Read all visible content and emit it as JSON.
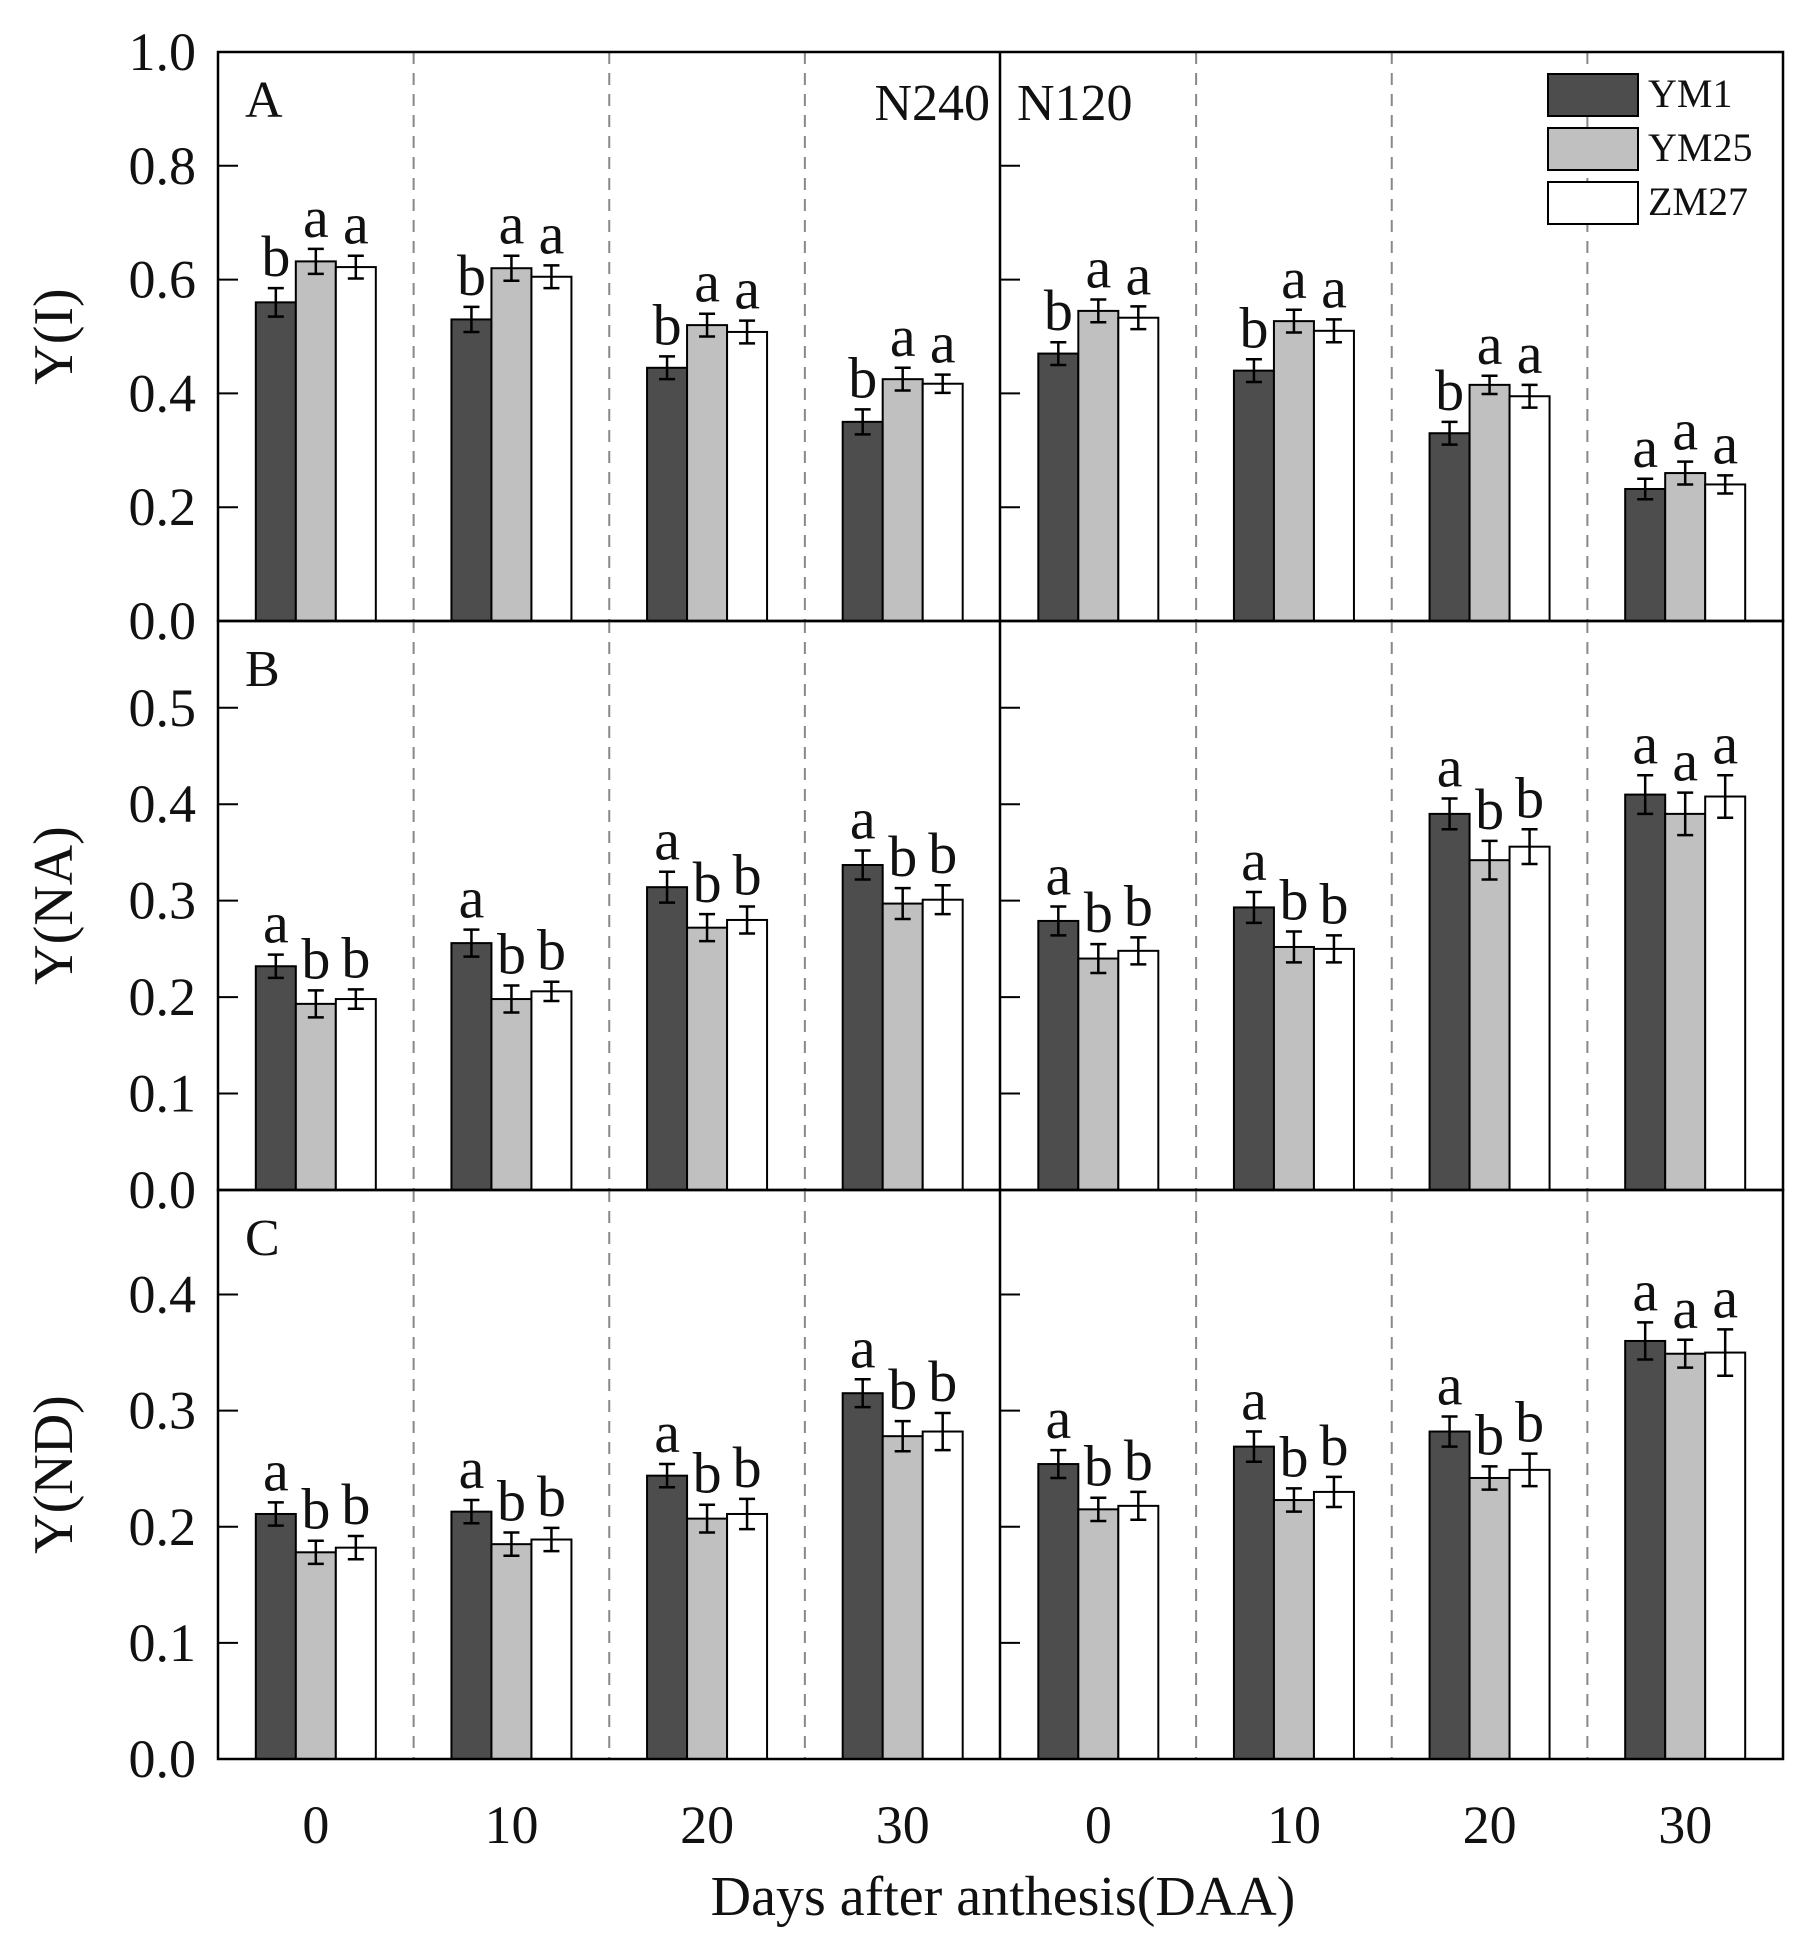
{
  "colors": {
    "YM1": "#4d4d4d",
    "YM25": "#c0c0c0",
    "ZM27": "#ffffff"
  },
  "legend": [
    "YM1",
    "YM25",
    "ZM27"
  ],
  "conditions": [
    "N240",
    "N120"
  ],
  "x_groups": [
    "0",
    "10",
    "20",
    "30"
  ],
  "xlabel": "Days after anthesis(DAA)",
  "chart_data": [
    {
      "type": "bar",
      "panel": "A",
      "ylabel": "Y(I)",
      "ylim": [
        0,
        1.0
      ],
      "yticks": [
        "0.0",
        "0.2",
        "0.4",
        "0.6",
        "0.8",
        "1.0"
      ],
      "x": [
        "0",
        "10",
        "20",
        "30",
        "0",
        "10",
        "20",
        "30"
      ],
      "condition": [
        "N240",
        "N240",
        "N240",
        "N240",
        "N120",
        "N120",
        "N120",
        "N120"
      ],
      "series": [
        {
          "name": "YM1",
          "values": [
            0.56,
            0.53,
            0.445,
            0.35,
            0.47,
            0.44,
            0.33,
            0.232
          ],
          "errors": [
            0.025,
            0.022,
            0.02,
            0.022,
            0.02,
            0.02,
            0.02,
            0.018
          ],
          "letters": [
            "b",
            "b",
            "b",
            "b",
            "b",
            "b",
            "b",
            "a"
          ]
        },
        {
          "name": "YM25",
          "values": [
            0.632,
            0.62,
            0.52,
            0.425,
            0.545,
            0.527,
            0.415,
            0.26
          ],
          "errors": [
            0.022,
            0.022,
            0.02,
            0.02,
            0.02,
            0.02,
            0.016,
            0.02
          ],
          "letters": [
            "a",
            "a",
            "a",
            "a",
            "a",
            "a",
            "a",
            "a"
          ]
        },
        {
          "name": "ZM27",
          "values": [
            0.622,
            0.605,
            0.508,
            0.417,
            0.533,
            0.51,
            0.395,
            0.24
          ],
          "errors": [
            0.02,
            0.02,
            0.02,
            0.016,
            0.02,
            0.02,
            0.02,
            0.016
          ],
          "letters": [
            "a",
            "a",
            "a",
            "a",
            "a",
            "a",
            "a",
            "a"
          ]
        }
      ]
    },
    {
      "type": "bar",
      "panel": "B",
      "ylabel": "Y(NA)",
      "ylim": [
        0,
        0.59
      ],
      "yticks": [
        "0.0",
        "0.1",
        "0.2",
        "0.3",
        "0.4",
        "0.5"
      ],
      "x": [
        "0",
        "10",
        "20",
        "30",
        "0",
        "10",
        "20",
        "30"
      ],
      "condition": [
        "N240",
        "N240",
        "N240",
        "N240",
        "N120",
        "N120",
        "N120",
        "N120"
      ],
      "series": [
        {
          "name": "YM1",
          "values": [
            0.232,
            0.256,
            0.314,
            0.337,
            0.279,
            0.293,
            0.39,
            0.41
          ],
          "errors": [
            0.012,
            0.014,
            0.016,
            0.015,
            0.015,
            0.016,
            0.016,
            0.02
          ],
          "letters": [
            "a",
            "a",
            "a",
            "a",
            "a",
            "a",
            "a",
            "a"
          ]
        },
        {
          "name": "YM25",
          "values": [
            0.193,
            0.198,
            0.272,
            0.297,
            0.24,
            0.252,
            0.342,
            0.39
          ],
          "errors": [
            0.014,
            0.014,
            0.014,
            0.016,
            0.015,
            0.016,
            0.02,
            0.022
          ],
          "letters": [
            "b",
            "b",
            "b",
            "b",
            "b",
            "b",
            "b",
            "a"
          ]
        },
        {
          "name": "ZM27",
          "values": [
            0.198,
            0.206,
            0.28,
            0.301,
            0.248,
            0.25,
            0.356,
            0.408
          ],
          "errors": [
            0.01,
            0.01,
            0.014,
            0.015,
            0.014,
            0.014,
            0.018,
            0.022
          ],
          "letters": [
            "b",
            "b",
            "b",
            "b",
            "b",
            "b",
            "b",
            "a"
          ]
        }
      ]
    },
    {
      "type": "bar",
      "panel": "C",
      "ylabel": "Y(ND)",
      "ylim": [
        0,
        0.49
      ],
      "yticks": [
        "0.0",
        "0.1",
        "0.2",
        "0.3",
        "0.4"
      ],
      "x": [
        "0",
        "10",
        "20",
        "30",
        "0",
        "10",
        "20",
        "30"
      ],
      "condition": [
        "N240",
        "N240",
        "N240",
        "N240",
        "N120",
        "N120",
        "N120",
        "N120"
      ],
      "series": [
        {
          "name": "YM1",
          "values": [
            0.211,
            0.213,
            0.244,
            0.315,
            0.254,
            0.269,
            0.282,
            0.36
          ],
          "errors": [
            0.01,
            0.01,
            0.01,
            0.012,
            0.012,
            0.013,
            0.013,
            0.016
          ],
          "letters": [
            "a",
            "a",
            "a",
            "a",
            "a",
            "a",
            "a",
            "a"
          ]
        },
        {
          "name": "YM25",
          "values": [
            0.178,
            0.185,
            0.207,
            0.278,
            0.215,
            0.223,
            0.242,
            0.349
          ],
          "errors": [
            0.01,
            0.01,
            0.012,
            0.013,
            0.01,
            0.01,
            0.01,
            0.012
          ],
          "letters": [
            "b",
            "b",
            "b",
            "b",
            "b",
            "b",
            "b",
            "a"
          ]
        },
        {
          "name": "ZM27",
          "values": [
            0.182,
            0.189,
            0.211,
            0.282,
            0.218,
            0.23,
            0.249,
            0.35
          ],
          "errors": [
            0.01,
            0.01,
            0.013,
            0.016,
            0.012,
            0.013,
            0.014,
            0.02
          ],
          "letters": [
            "b",
            "b",
            "b",
            "b",
            "b",
            "b",
            "b",
            "a"
          ]
        }
      ]
    }
  ]
}
